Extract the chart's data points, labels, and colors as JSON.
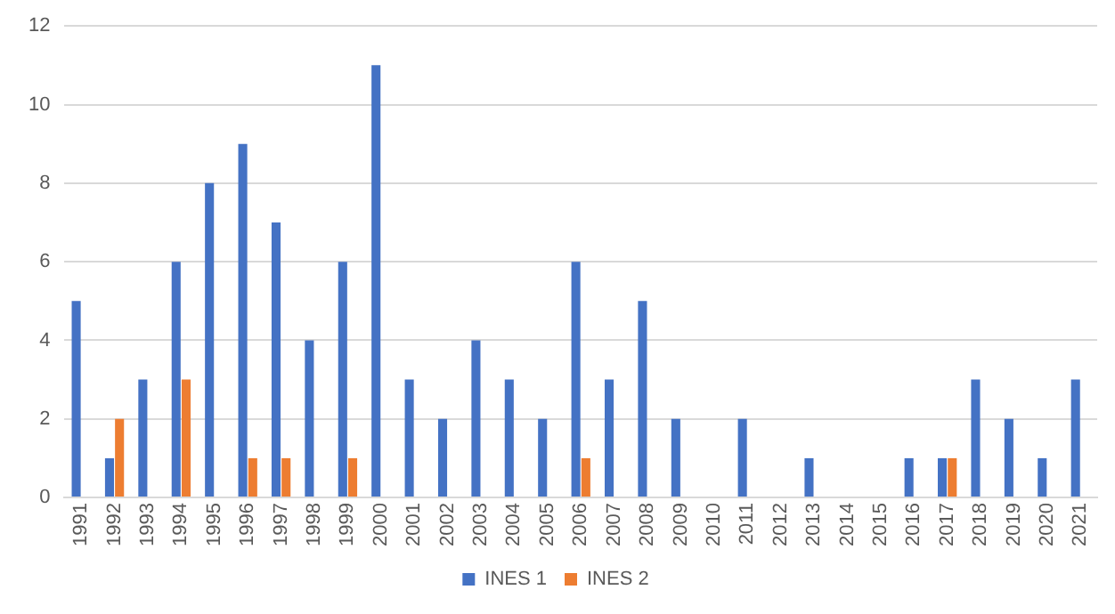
{
  "chart_data": {
    "type": "bar",
    "categories": [
      "1991",
      "1992",
      "1993",
      "1994",
      "1995",
      "1996",
      "1997",
      "1998",
      "1999",
      "2000",
      "2001",
      "2002",
      "2003",
      "2004",
      "2005",
      "2006",
      "2007",
      "2008",
      "2009",
      "2010",
      "2011",
      "2012",
      "2013",
      "2014",
      "2015",
      "2016",
      "2017",
      "2018",
      "2019",
      "2020",
      "2021"
    ],
    "series": [
      {
        "name": "INES 1",
        "color": "#4472c4",
        "values": [
          5,
          1,
          3,
          6,
          8,
          9,
          7,
          4,
          6,
          11,
          3,
          2,
          4,
          3,
          2,
          6,
          3,
          5,
          2,
          0,
          2,
          0,
          1,
          0,
          0,
          1,
          1,
          3,
          2,
          1,
          3
        ]
      },
      {
        "name": "INES 2",
        "color": "#ed7d31",
        "values": [
          0,
          2,
          0,
          3,
          0,
          1,
          1,
          0,
          1,
          0,
          0,
          0,
          0,
          0,
          0,
          1,
          0,
          0,
          0,
          0,
          0,
          0,
          0,
          0,
          0,
          0,
          1,
          0,
          0,
          0,
          0
        ]
      }
    ],
    "ylim": [
      0,
      12
    ],
    "yticks": [
      0,
      2,
      4,
      6,
      8,
      10,
      12
    ],
    "grid": "y",
    "legend": "bottom"
  }
}
